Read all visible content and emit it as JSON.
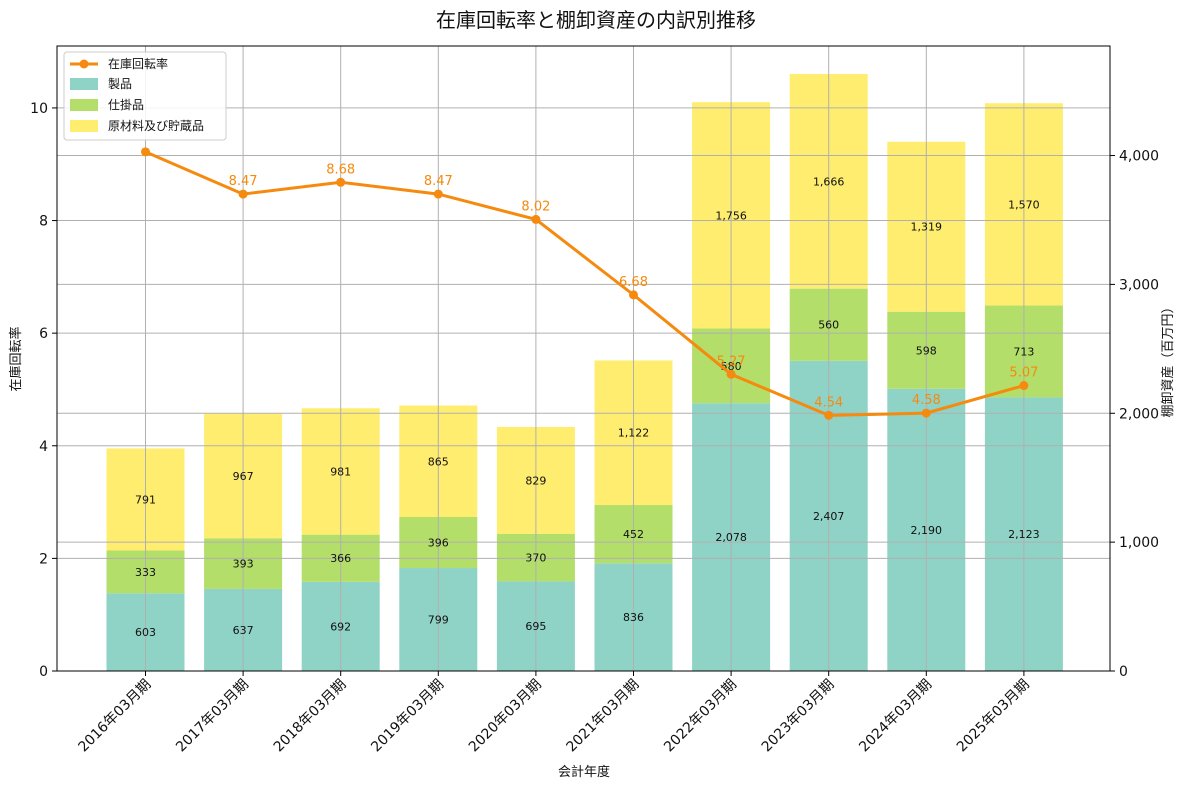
{
  "chart_data": {
    "type": "bar",
    "title": "在庫回転率と棚卸資産の内訳別推移",
    "xlabel": "会計年度",
    "ylabel_left": "在庫回転率",
    "ylabel_right": "棚卸資産（百万円）",
    "categories": [
      "2016年03月期",
      "2017年03月期",
      "2018年03月期",
      "2019年03月期",
      "2020年03月期",
      "2021年03月期",
      "2022年03月期",
      "2023年03月期",
      "2024年03月期",
      "2025年03月期"
    ],
    "stack_series": [
      {
        "name": "製品",
        "color": "#8fd3c7",
        "values": [
          603,
          637,
          692,
          799,
          695,
          836,
          2078,
          2407,
          2190,
          2123
        ]
      },
      {
        "name": "仕掛品",
        "color": "#b3de69",
        "values": [
          333,
          393,
          366,
          396,
          370,
          452,
          580,
          560,
          598,
          713
        ]
      },
      {
        "name": "原材料及び貯蔵品",
        "color": "#ffed6f",
        "values": [
          791,
          967,
          981,
          865,
          829,
          1122,
          1756,
          1666,
          1319,
          1570
        ]
      }
    ],
    "line_series": {
      "name": "在庫回転率",
      "color": "#f58a0f",
      "values": [
        9.22,
        8.47,
        8.68,
        8.47,
        8.02,
        6.68,
        5.27,
        4.54,
        4.58,
        5.07
      ],
      "labels": [
        "",
        "8.47",
        "8.68",
        "8.47",
        "8.02",
        "6.68",
        "5.27",
        "4.54",
        "4.58",
        "5.07"
      ]
    },
    "ylim_left": [
      0,
      11.1
    ],
    "yticks_left": [
      0,
      2,
      4,
      6,
      8,
      10
    ],
    "ylim_right": [
      0,
      4850
    ],
    "yticks_right": [
      0,
      1000,
      2000,
      3000,
      4000
    ],
    "yticks_right_labels": [
      "0",
      "1,000",
      "2,000",
      "3,000",
      "4,000"
    ],
    "grid": true,
    "legend_position": "top-left"
  }
}
